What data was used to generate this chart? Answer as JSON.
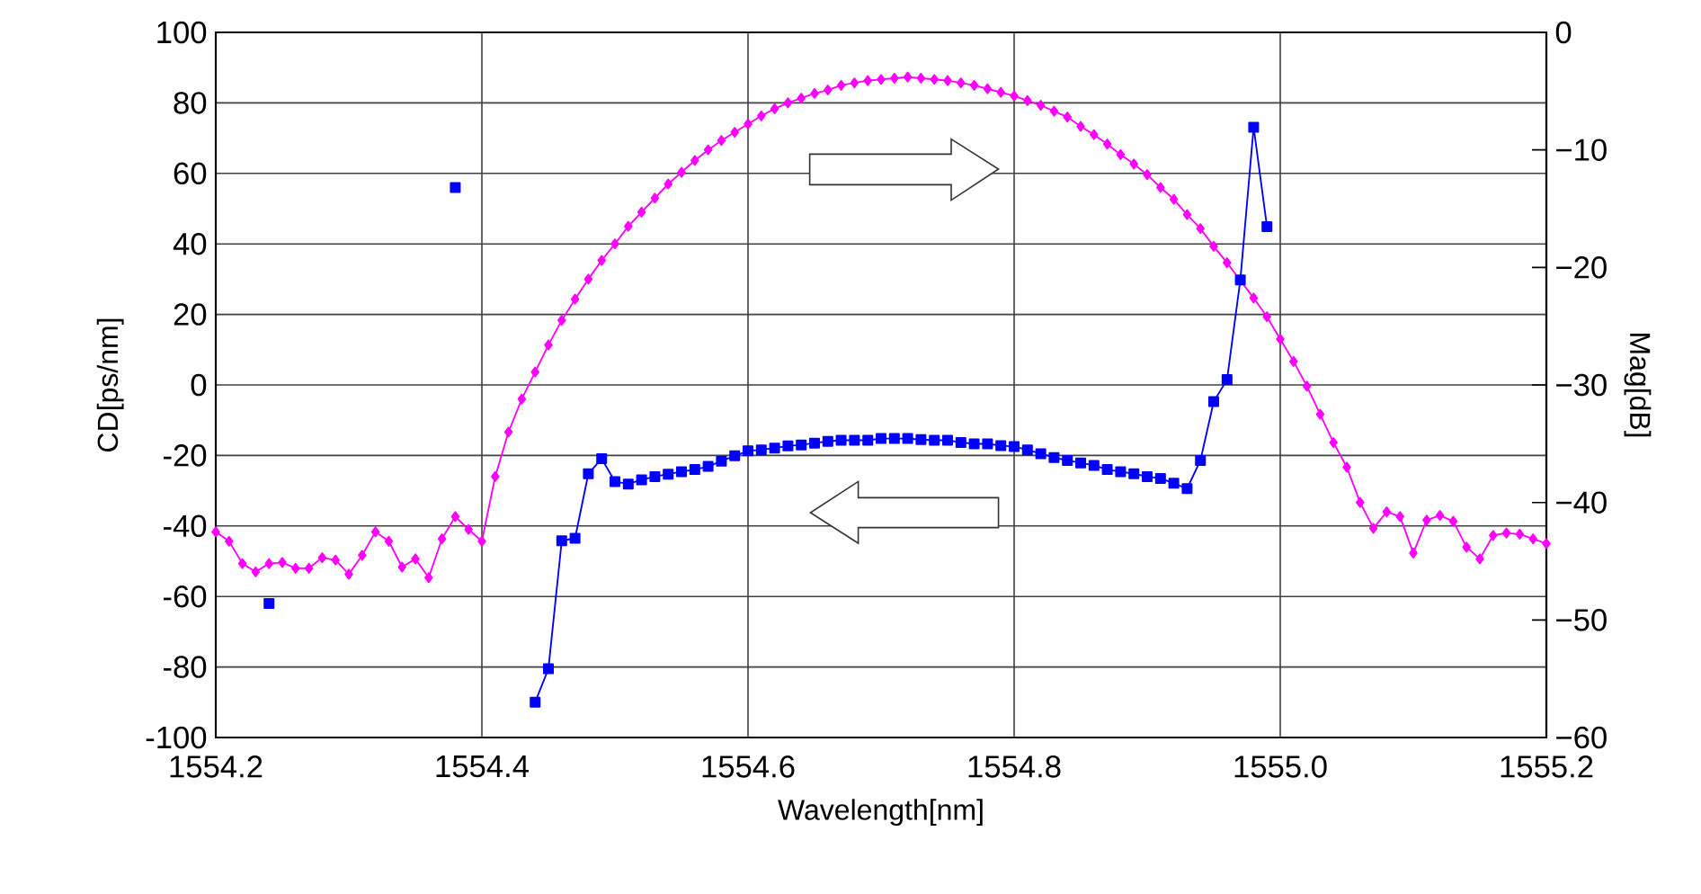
{
  "chart_data": {
    "type": "line",
    "xlabel": "Wavelength[nm]",
    "ylabel": "CD[ps/nm]",
    "y2label": "Mag[dB]",
    "xlim": [
      1554.2,
      1555.2
    ],
    "xticks": [
      1554.2,
      1554.4,
      1554.6,
      1554.8,
      {
        "value": 1555.0,
        "label": "1555.0"
      },
      1555.2
    ],
    "ylim": [
      -100,
      100
    ],
    "yticks": [
      -100,
      -80,
      -60,
      -40,
      -20,
      0,
      20,
      40,
      60,
      80,
      100
    ],
    "y2lim": [
      -60,
      0
    ],
    "y2ticks": [
      {
        "value": -60,
        "label": "−60"
      },
      {
        "value": -50,
        "label": "−50"
      },
      {
        "value": -40,
        "label": "−40"
      },
      {
        "value": -30,
        "label": "−30"
      },
      {
        "value": -20,
        "label": "−20"
      },
      {
        "value": -10,
        "label": "−10"
      },
      0
    ],
    "grid": true,
    "series": [
      {
        "color": "#0000ff",
        "marker": "square",
        "axis": "y",
        "x": [
          1554.24,
          1554.3,
          1554.38,
          1554.41,
          1554.44,
          1554.45,
          1554.46,
          1554.47,
          1554.48,
          1554.49,
          1554.5,
          1554.51,
          1554.52,
          1554.53,
          1554.54,
          1554.55,
          1554.56,
          1554.57,
          1554.58,
          1554.59,
          1554.6,
          1554.61,
          1554.62,
          1554.63,
          1554.64,
          1554.65,
          1554.66,
          1554.67,
          1554.68,
          1554.69,
          1554.7,
          1554.71,
          1554.72,
          1554.73,
          1554.74,
          1554.75,
          1554.76,
          1554.77,
          1554.78,
          1554.79,
          1554.8,
          1554.81,
          1554.82,
          1554.83,
          1554.84,
          1554.85,
          1554.86,
          1554.87,
          1554.88,
          1554.89,
          1554.9,
          1554.91,
          1554.92,
          1554.93,
          1554.94,
          1554.95,
          1554.96,
          1554.97,
          1554.98,
          1554.99
        ],
        "values": [
          -62,
          null,
          56,
          null,
          -90,
          -80.5,
          -44.2,
          -43.5,
          -25.2,
          -20.9,
          -27.4,
          -28.1,
          -26.9,
          -26.0,
          -25.3,
          -24.6,
          -24.0,
          -23.1,
          -21.6,
          -20.1,
          -18.7,
          -18.4,
          -17.9,
          -17.3,
          -17.0,
          -16.5,
          -16.0,
          -15.7,
          -15.7,
          -15.7,
          -15.2,
          -15.2,
          -15.2,
          -15.5,
          -15.7,
          -15.7,
          -16.3,
          -16.7,
          -16.7,
          -17.2,
          -17.5,
          -18.4,
          -19.5,
          -20.6,
          -21.4,
          -22.1,
          -22.8,
          -24.0,
          -24.6,
          -25.2,
          -26.0,
          -26.5,
          -27.9,
          -29.4,
          -21.4,
          -4.7,
          1.5,
          29.8,
          73.1,
          44.9
        ]
      },
      {
        "color": "#ff00ff",
        "marker": "diamond",
        "axis": "y2",
        "x": [
          1554.2,
          1554.21,
          1554.22,
          1554.23,
          1554.24,
          1554.25,
          1554.26,
          1554.27,
          1554.28,
          1554.29,
          1554.3,
          1554.31,
          1554.32,
          1554.33,
          1554.34,
          1554.35,
          1554.36,
          1554.37,
          1554.38,
          1554.39,
          1554.4,
          1554.41,
          1554.42,
          1554.43,
          1554.44,
          1554.45,
          1554.46,
          1554.47,
          1554.48,
          1554.49,
          1554.5,
          1554.51,
          1554.52,
          1554.53,
          1554.54,
          1554.55,
          1554.56,
          1554.57,
          1554.58,
          1554.59,
          1554.6,
          1554.61,
          1554.62,
          1554.63,
          1554.64,
          1554.65,
          1554.66,
          1554.67,
          1554.68,
          1554.69,
          1554.7,
          1554.71,
          1554.72,
          1554.73,
          1554.74,
          1554.75,
          1554.76,
          1554.77,
          1554.78,
          1554.79,
          1554.8,
          1554.81,
          1554.82,
          1554.83,
          1554.84,
          1554.85,
          1554.86,
          1554.87,
          1554.88,
          1554.89,
          1554.9,
          1554.91,
          1554.92,
          1554.93,
          1554.94,
          1554.95,
          1554.96,
          1554.97,
          1554.98,
          1554.99,
          1555.0,
          1555.01,
          1555.02,
          1555.03,
          1555.04,
          1555.05,
          1555.06,
          1555.07,
          1555.08,
          1555.09,
          1555.1,
          1555.11,
          1555.12,
          1555.13,
          1555.14,
          1555.15,
          1555.16,
          1555.17,
          1555.18,
          1555.19,
          1555.2
        ],
        "values": [
          -42.5,
          -43.3,
          -45.2,
          -45.9,
          -45.2,
          -45.1,
          -45.6,
          -45.6,
          -44.7,
          -44.9,
          -46.1,
          -44.5,
          -42.5,
          -43.3,
          -45.5,
          -44.8,
          -46.4,
          -43.1,
          -41.2,
          -42.3,
          -43.3,
          -37.8,
          -34.0,
          -31.2,
          -28.9,
          -26.6,
          -24.5,
          -22.7,
          -21.0,
          -19.4,
          -18.0,
          -16.5,
          -15.3,
          -14.1,
          -12.9,
          -11.9,
          -10.9,
          -10.0,
          -9.2,
          -8.5,
          -7.8,
          -7.1,
          -6.5,
          -6.0,
          -5.6,
          -5.2,
          -4.9,
          -4.5,
          -4.3,
          -4.1,
          -4.0,
          -3.9,
          -3.8,
          -3.9,
          -4.0,
          -4.1,
          -4.3,
          -4.5,
          -4.8,
          -5.1,
          -5.4,
          -5.8,
          -6.2,
          -6.7,
          -7.2,
          -8.0,
          -8.7,
          -9.5,
          -10.4,
          -11.2,
          -12.1,
          -13.2,
          -14.2,
          -15.5,
          -16.7,
          -18.2,
          -19.6,
          -21.1,
          -22.6,
          -24.2,
          -26.1,
          -28.0,
          -30.1,
          -32.5,
          -34.9,
          -37.0,
          -40.0,
          -42.2,
          -40.8,
          -41.2,
          -44.3,
          -41.5,
          -41.1,
          -41.6,
          -43.8,
          -44.8,
          -42.8,
          -42.6,
          -42.7,
          -43.1,
          -43.5
        ]
      }
    ]
  }
}
